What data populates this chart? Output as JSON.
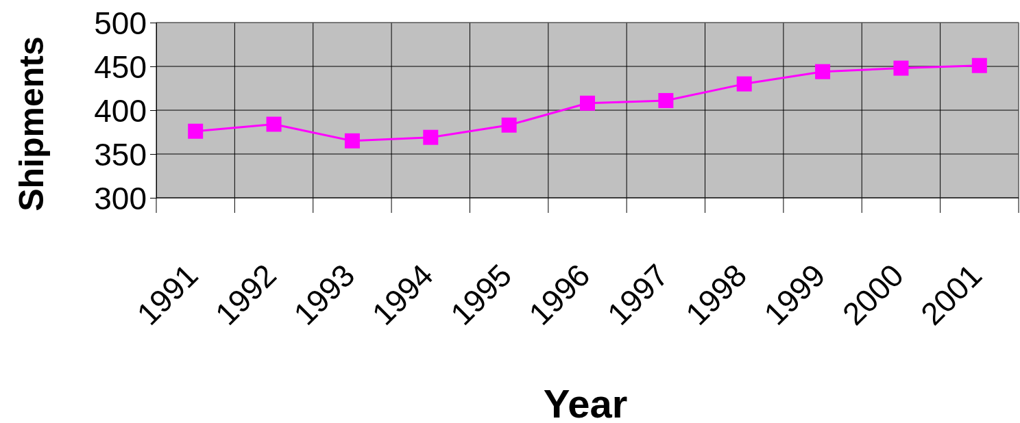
{
  "chart_data": {
    "type": "line",
    "xlabel": "Year",
    "ylabel": "Shipments",
    "categories": [
      "1991",
      "1992",
      "1993",
      "1994",
      "1995",
      "1996",
      "1997",
      "1998",
      "1999",
      "2000",
      "2001"
    ],
    "series": [
      {
        "color": "#ff00ff",
        "values": [
          376,
          384,
          365,
          369,
          383,
          408,
          411,
          430,
          444,
          448,
          451
        ]
      }
    ],
    "ylim": [
      300,
      500
    ],
    "yticks": [
      300,
      350,
      400,
      450,
      500
    ],
    "grid": true,
    "marker": "square",
    "line_style": "solid"
  }
}
